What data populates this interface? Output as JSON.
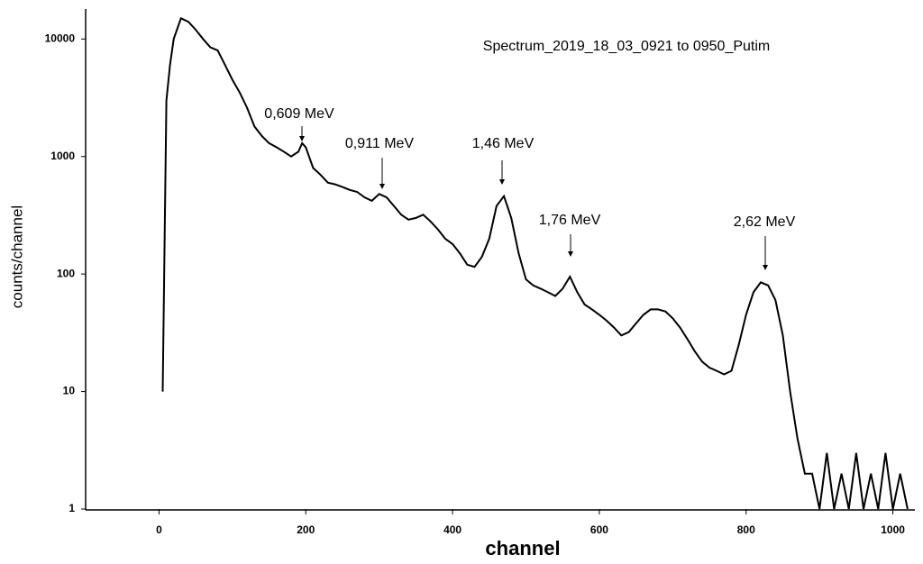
{
  "chart_data": {
    "type": "line",
    "title": "Spectrum_2019_18_03_0921 to 0950_Putim",
    "xlabel": "channel",
    "ylabel": "counts/channel",
    "yscale": "log",
    "xlim": [
      -100,
      1030
    ],
    "ylim": [
      1,
      18000
    ],
    "xticks": [
      0,
      200,
      400,
      600,
      800,
      1000
    ],
    "yticks": [
      1,
      10,
      100,
      1000,
      10000
    ],
    "annotations": [
      "0,609 MeV",
      "0,911 MeV",
      "1,46 MeV",
      "1,76 MeV",
      "2,62 MeV"
    ],
    "series": [
      {
        "color": "#000000",
        "x": [
          5,
          10,
          15,
          20,
          30,
          40,
          50,
          60,
          70,
          80,
          90,
          100,
          110,
          120,
          130,
          140,
          150,
          160,
          170,
          180,
          190,
          195,
          200,
          210,
          220,
          230,
          240,
          250,
          260,
          270,
          280,
          290,
          300,
          310,
          320,
          330,
          340,
          350,
          360,
          370,
          380,
          390,
          400,
          410,
          420,
          430,
          440,
          450,
          460,
          470,
          480,
          490,
          500,
          510,
          520,
          530,
          540,
          550,
          560,
          570,
          580,
          590,
          600,
          610,
          620,
          630,
          640,
          650,
          660,
          670,
          680,
          690,
          700,
          710,
          720,
          730,
          740,
          750,
          760,
          770,
          780,
          790,
          800,
          810,
          820,
          830,
          840,
          850,
          860,
          870,
          880,
          890,
          900,
          910,
          920,
          930,
          940,
          950,
          960,
          970,
          980,
          990,
          1000,
          1010,
          1020
        ],
        "values": [
          10,
          3000,
          6000,
          10000,
          15000,
          14000,
          12000,
          10000,
          8500,
          8000,
          6000,
          4500,
          3500,
          2600,
          1800,
          1500,
          1300,
          1200,
          1100,
          1000,
          1100,
          1300,
          1200,
          800,
          700,
          600,
          580,
          550,
          520,
          500,
          450,
          420,
          480,
          450,
          380,
          320,
          290,
          300,
          320,
          280,
          240,
          200,
          180,
          150,
          120,
          115,
          140,
          200,
          380,
          460,
          300,
          150,
          90,
          80,
          75,
          70,
          65,
          75,
          95,
          70,
          55,
          50,
          45,
          40,
          35,
          30,
          32,
          38,
          45,
          50,
          50,
          48,
          42,
          35,
          28,
          22,
          18,
          16,
          15,
          14,
          15,
          25,
          45,
          70,
          85,
          80,
          60,
          30,
          10,
          4,
          2,
          2,
          1,
          3,
          1,
          2,
          1,
          3,
          1,
          2,
          1,
          3,
          1,
          2,
          1
        ]
      }
    ]
  }
}
